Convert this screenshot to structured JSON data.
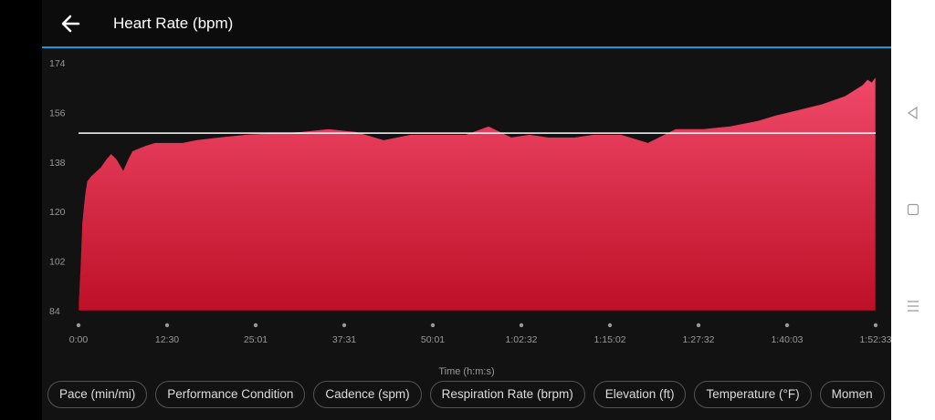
{
  "header": {
    "title": "Heart Rate (bpm)",
    "back_icon": "arrow-left-icon"
  },
  "colors": {
    "accent": "#1e9bd7",
    "fill_top": "#f0496a",
    "fill_bottom": "#be1027",
    "average_line": "#ffffff"
  },
  "chart_data": {
    "type": "area",
    "title": "Heart Rate (bpm)",
    "xlabel": "Time (h:m:s)",
    "ylabel": "",
    "ylim": [
      84,
      174
    ],
    "yticks": [
      "174",
      "156",
      "138",
      "120",
      "102",
      "84"
    ],
    "ytick_values": [
      174,
      156,
      138,
      120,
      102,
      84
    ],
    "xticks": [
      "0:00",
      "12:30",
      "25:01",
      "37:31",
      "50:01",
      "1:02:32",
      "1:15:02",
      "1:27:32",
      "1:40:03",
      "1:52:33"
    ],
    "xlim_minutes": [
      0,
      112.55
    ],
    "average_bpm": 148.5,
    "series": [
      {
        "x_minutes": [
          0,
          0.26,
          0.5,
          0.9,
          1.2,
          1.8,
          3.1,
          3.9,
          4.6,
          5.4,
          6.3,
          7.0,
          7.6,
          9.5,
          10.8,
          12.8,
          14.7,
          16.6,
          19.9,
          23.7,
          27.6,
          31.5,
          35.3,
          39.2,
          43.1,
          46.9,
          50.8,
          54.7,
          57.9,
          61.1,
          63.7,
          66.3,
          70.1,
          72.7,
          76.6,
          80.4,
          84.3,
          88.2,
          92.0,
          95.9,
          98.5,
          101.7,
          104.9,
          108.2,
          110.7,
          111.4,
          112.0,
          112.55
        ],
        "bpm": [
          87,
          100,
          116,
          126,
          131,
          133,
          136,
          139,
          141,
          139,
          135,
          139,
          142,
          144,
          145,
          145,
          145,
          146,
          147,
          148,
          148.5,
          149,
          150,
          149,
          146,
          148,
          148,
          148,
          151,
          147,
          148,
          147,
          147,
          148,
          148,
          145,
          150,
          150,
          151,
          153,
          155,
          157,
          159,
          162,
          166,
          168,
          167,
          169
        ]
      }
    ]
  },
  "metric_chips": [
    "Pace (min/mi)",
    "Performance Condition",
    "Cadence (spm)",
    "Respiration Rate (brpm)",
    "Elevation (ft)",
    "Temperature (°F)",
    "Momen"
  ],
  "nav": {
    "back": "triangle-back-icon",
    "home": "square-home-icon",
    "menu": "menu-lines-icon"
  }
}
